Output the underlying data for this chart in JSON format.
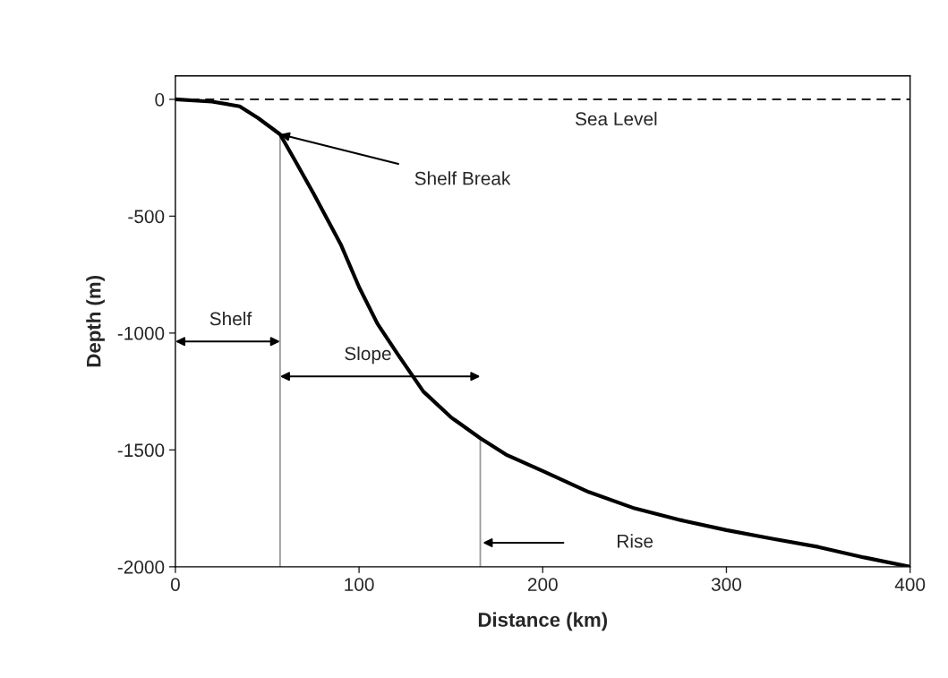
{
  "chart_data": {
    "type": "line",
    "xlabel": "Distance (km)",
    "ylabel": "Depth (m)",
    "xlim": [
      0,
      400
    ],
    "ylim": [
      -2000,
      100
    ],
    "xticks": [
      0,
      100,
      200,
      300,
      400
    ],
    "yticks": [
      -2000,
      -1500,
      -1000,
      -500,
      0
    ],
    "series": [
      {
        "color": "#000000",
        "x": [
          0,
          20,
          35,
          45,
          57,
          65,
          75,
          90,
          100,
          110,
          121,
          135,
          150,
          166,
          180,
          200,
          225,
          250,
          275,
          300,
          325,
          350,
          375,
          400
        ],
        "values": [
          0,
          -10,
          -30,
          -80,
          -150,
          -260,
          -400,
          -620,
          -803,
          -960,
          -1090,
          -1250,
          -1360,
          -1450,
          -1520,
          -1590,
          -1680,
          -1750,
          -1800,
          -1843,
          -1880,
          -1915,
          -1960,
          -2000
        ]
      },
      {
        "color": "#999999",
        "x": [
          57,
          57
        ],
        "values": [
          -2000,
          -150
        ]
      },
      {
        "color": "#999999",
        "x": [
          166,
          166
        ],
        "values": [
          -2000,
          -1450
        ]
      }
    ],
    "ref_lines": [
      {
        "axis": "y",
        "value": 0,
        "label": "Sea Level",
        "color": "#000000",
        "line_style": "dashed"
      }
    ],
    "annotations": [
      {
        "text": "Shelf Break",
        "x": 57,
        "y": -150
      },
      "Shelf",
      "Slope",
      "Rise"
    ],
    "grid": false,
    "legend": false
  }
}
